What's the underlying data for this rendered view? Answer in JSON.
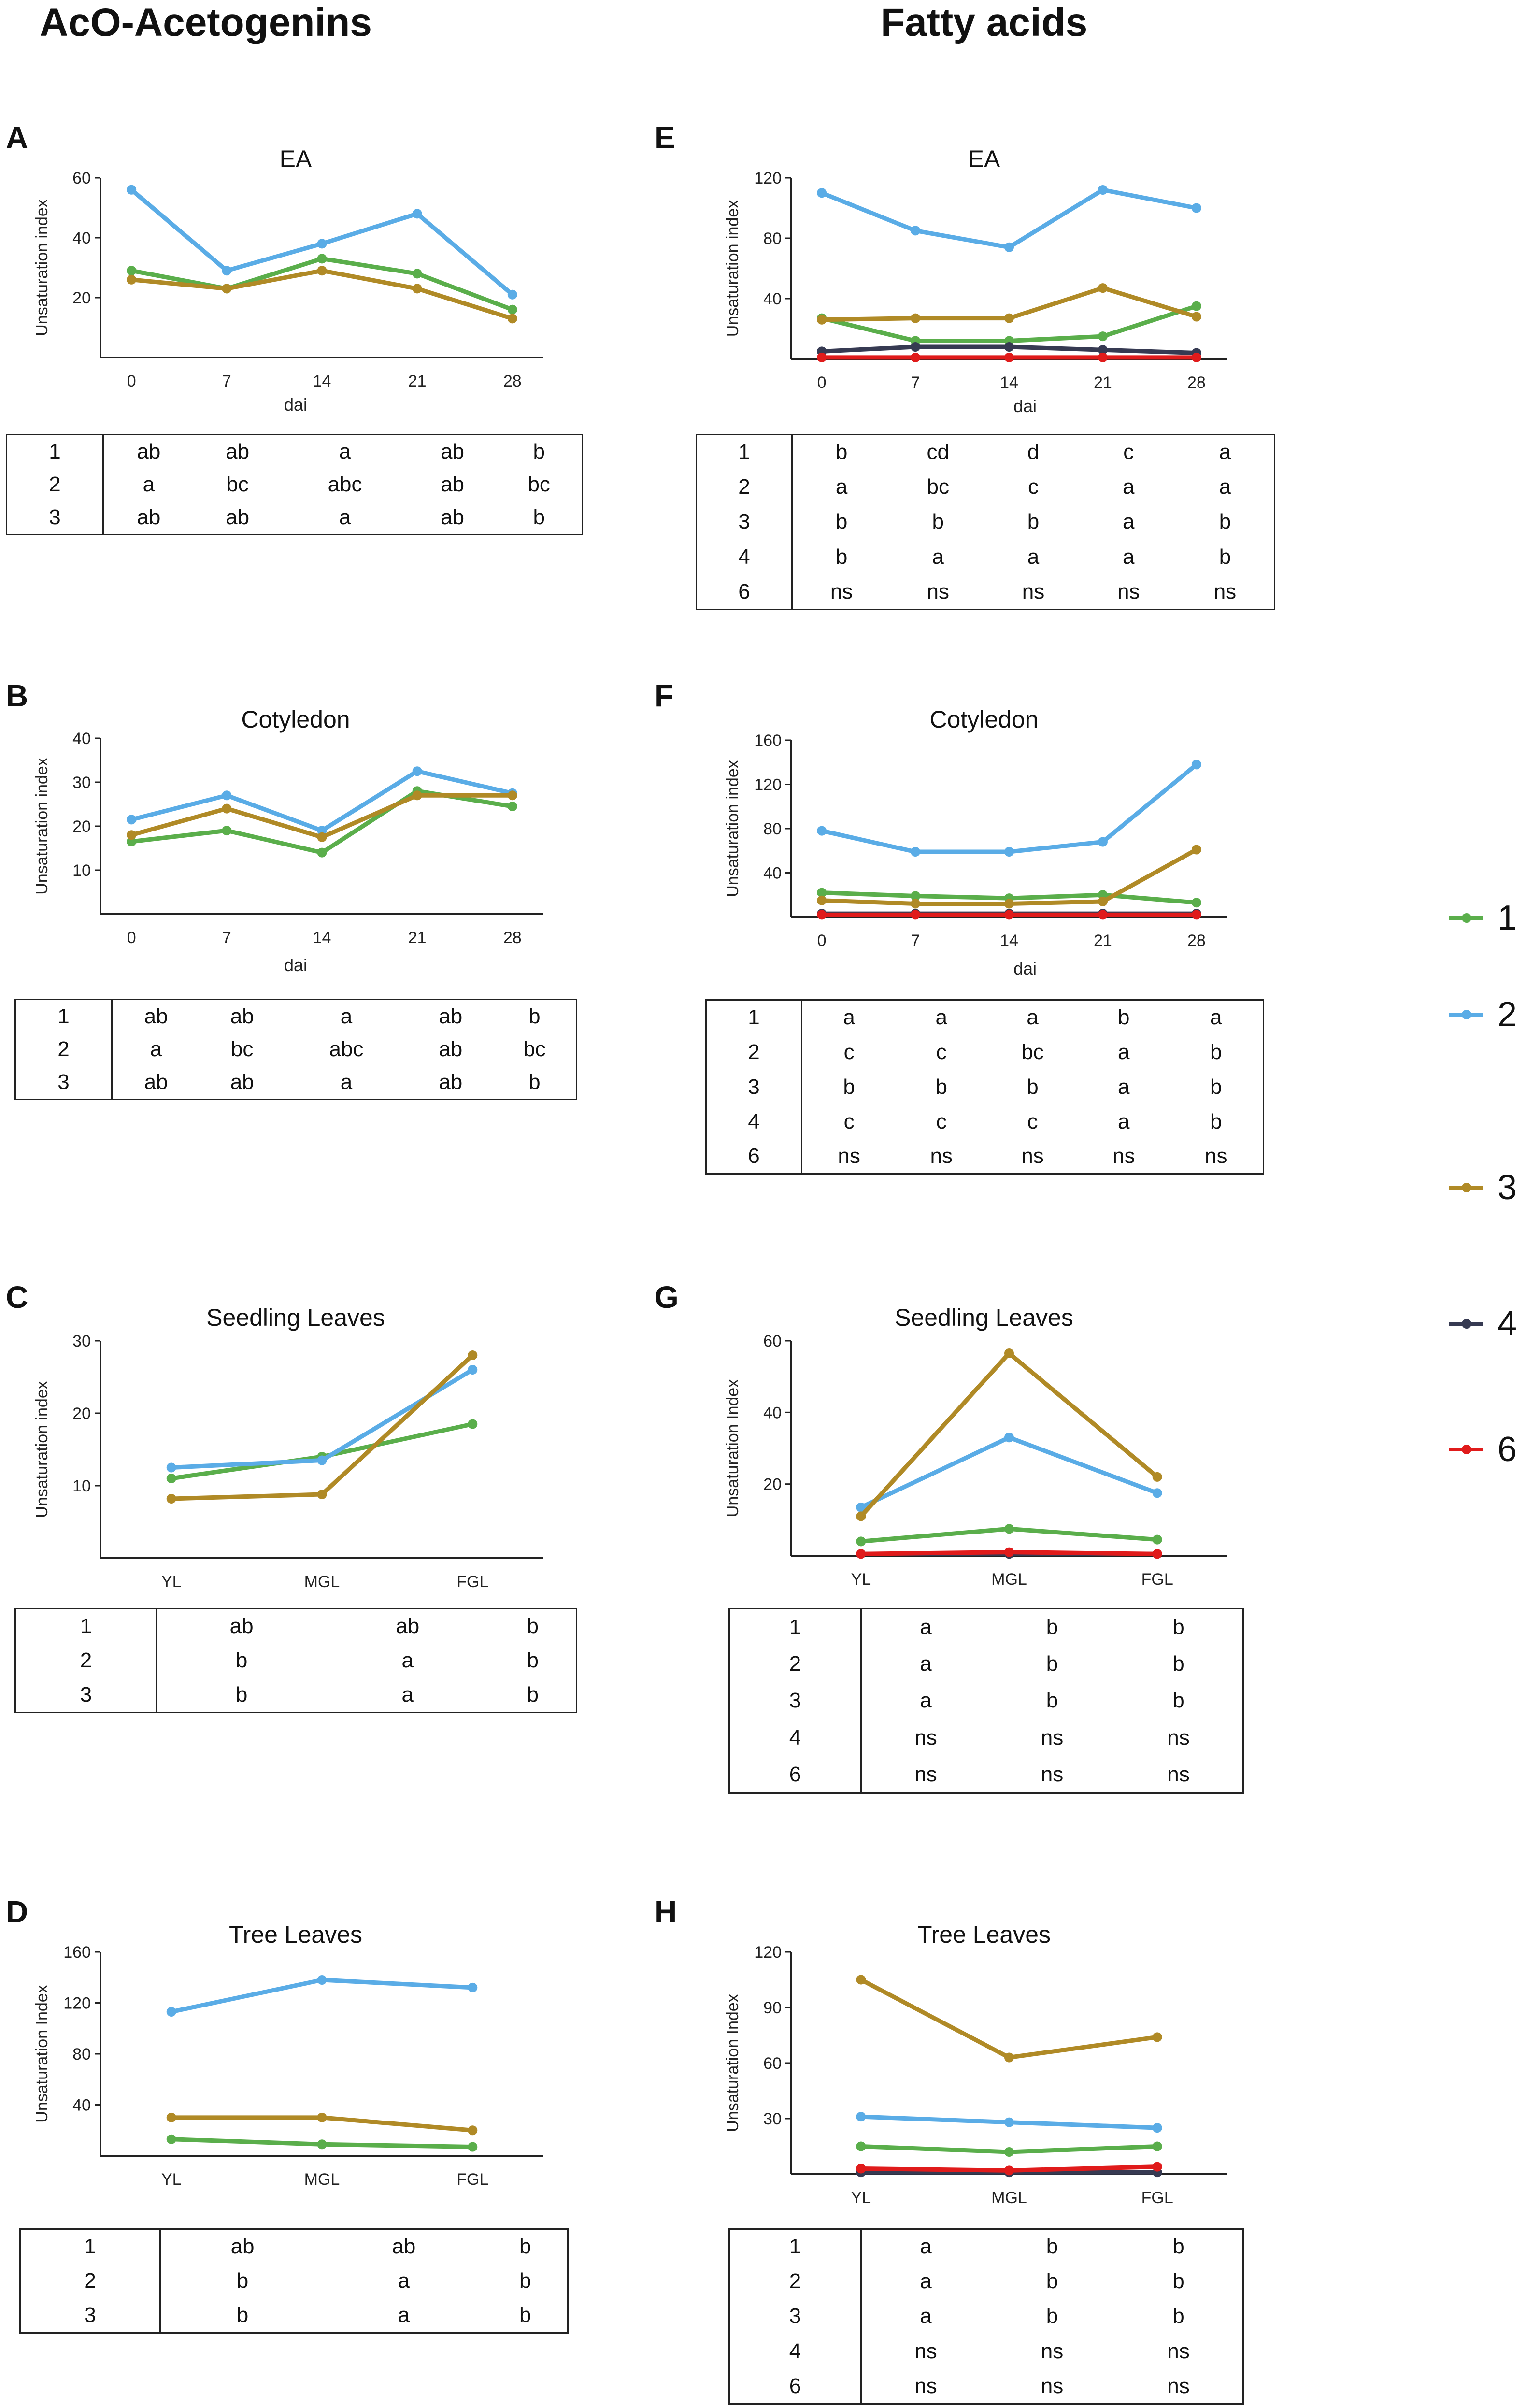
{
  "headings": {
    "left": "AcO-Acetogenins",
    "right": "Fatty acids"
  },
  "legend": [
    {
      "label": "1",
      "color": "#5aae4b"
    },
    {
      "label": "2",
      "color": "#5aace6"
    },
    {
      "label": "3",
      "color": "#b08a26"
    },
    {
      "label": "4",
      "color": "#363a52"
    },
    {
      "label": "6",
      "color": "#e01b1b"
    }
  ],
  "chart_data": [
    {
      "panel": "A",
      "title": "EA",
      "type": "line",
      "categories": [
        "0",
        "7",
        "14",
        "21",
        "28"
      ],
      "xlabel": "dai",
      "ylabel": "Unsaturation index",
      "ylim": [
        0,
        60
      ],
      "yticks": [
        20,
        40,
        60
      ],
      "series": [
        {
          "name": "1",
          "color": "#5aae4b",
          "values": [
            29,
            23,
            33,
            28,
            16
          ]
        },
        {
          "name": "2",
          "color": "#5aace6",
          "values": [
            56,
            29,
            38,
            48,
            21
          ]
        },
        {
          "name": "3",
          "color": "#b08a26",
          "values": [
            26,
            23,
            29,
            23,
            13
          ]
        }
      ],
      "letters": [
        {
          "group": "1",
          "cells": [
            "ab",
            "ab",
            "a",
            "ab",
            "b"
          ]
        },
        {
          "group": "2",
          "cells": [
            "a",
            "bc",
            "abc",
            "ab",
            "bc"
          ]
        },
        {
          "group": "3",
          "cells": [
            "ab",
            "ab",
            "a",
            "ab",
            "b"
          ]
        }
      ]
    },
    {
      "panel": "B",
      "title": "Cotyledon",
      "type": "line",
      "categories": [
        "0",
        "7",
        "14",
        "21",
        "28"
      ],
      "xlabel": "dai",
      "ylabel": "Unsaturation index",
      "ylim": [
        0,
        40
      ],
      "yticks": [
        10,
        20,
        30,
        40
      ],
      "series": [
        {
          "name": "1",
          "color": "#5aae4b",
          "values": [
            16.5,
            19,
            14,
            28,
            24.5
          ]
        },
        {
          "name": "2",
          "color": "#5aace6",
          "values": [
            21.5,
            27,
            19,
            32.5,
            27.5
          ]
        },
        {
          "name": "3",
          "color": "#b08a26",
          "values": [
            18,
            24,
            17.5,
            27,
            27
          ]
        }
      ],
      "letters": [
        {
          "group": "1",
          "cells": [
            "ab",
            "ab",
            "a",
            "ab",
            "b"
          ]
        },
        {
          "group": "2",
          "cells": [
            "a",
            "bc",
            "abc",
            "ab",
            "bc"
          ]
        },
        {
          "group": "3",
          "cells": [
            "ab",
            "ab",
            "a",
            "ab",
            "b"
          ]
        }
      ]
    },
    {
      "panel": "C",
      "title": "Seedling Leaves",
      "type": "line",
      "categories": [
        "YL",
        "MGL",
        "FGL"
      ],
      "xlabel": "",
      "ylabel": "Unsaturation index",
      "ylim": [
        0,
        30
      ],
      "yticks": [
        10,
        20,
        30
      ],
      "series": [
        {
          "name": "1",
          "color": "#5aae4b",
          "values": [
            11,
            14,
            18.5
          ]
        },
        {
          "name": "2",
          "color": "#5aace6",
          "values": [
            12.5,
            13.5,
            26
          ]
        },
        {
          "name": "3",
          "color": "#b08a26",
          "values": [
            8.2,
            8.8,
            28
          ]
        }
      ],
      "letters": [
        {
          "group": "1",
          "cells": [
            "ab",
            "ab",
            "b"
          ]
        },
        {
          "group": "2",
          "cells": [
            "b",
            "a",
            "b"
          ]
        },
        {
          "group": "3",
          "cells": [
            "b",
            "a",
            "b"
          ]
        }
      ]
    },
    {
      "panel": "D",
      "title": "Tree Leaves",
      "type": "line",
      "categories": [
        "YL",
        "MGL",
        "FGL"
      ],
      "xlabel": "",
      "ylabel": "Unsaturation Index",
      "ylim": [
        0,
        160
      ],
      "yticks": [
        40,
        80,
        120,
        160
      ],
      "series": [
        {
          "name": "1",
          "color": "#5aae4b",
          "values": [
            13,
            9,
            7
          ]
        },
        {
          "name": "2",
          "color": "#5aace6",
          "values": [
            113,
            138,
            132
          ]
        },
        {
          "name": "3",
          "color": "#b08a26",
          "values": [
            30,
            30,
            20
          ]
        }
      ],
      "letters": [
        {
          "group": "1",
          "cells": [
            "ab",
            "ab",
            "b"
          ]
        },
        {
          "group": "2",
          "cells": [
            "b",
            "a",
            "b"
          ]
        },
        {
          "group": "3",
          "cells": [
            "b",
            "a",
            "b"
          ]
        }
      ]
    },
    {
      "panel": "E",
      "title": "EA",
      "type": "line",
      "categories": [
        "0",
        "7",
        "14",
        "21",
        "28"
      ],
      "xlabel": "dai",
      "ylabel": "Unsaturation index",
      "ylim": [
        0,
        120
      ],
      "yticks": [
        40,
        80,
        120
      ],
      "series": [
        {
          "name": "1",
          "color": "#5aae4b",
          "values": [
            27,
            12,
            12,
            15,
            35
          ]
        },
        {
          "name": "2",
          "color": "#5aace6",
          "values": [
            110,
            85,
            74,
            112,
            100
          ]
        },
        {
          "name": "3",
          "color": "#b08a26",
          "values": [
            26,
            27,
            27,
            47,
            28
          ]
        },
        {
          "name": "4",
          "color": "#363a52",
          "values": [
            5,
            8,
            8,
            6,
            4
          ]
        },
        {
          "name": "6",
          "color": "#e01b1b",
          "values": [
            1,
            1,
            1,
            1,
            1
          ]
        }
      ],
      "letters": [
        {
          "group": "1",
          "cells": [
            "b",
            "cd",
            "d",
            "c",
            "a"
          ]
        },
        {
          "group": "2",
          "cells": [
            "a",
            "bc",
            "c",
            "a",
            "a"
          ]
        },
        {
          "group": "3",
          "cells": [
            "b",
            "b",
            "b",
            "a",
            "b"
          ]
        },
        {
          "group": "4",
          "cells": [
            "b",
            "a",
            "a",
            "a",
            "b"
          ]
        },
        {
          "group": "6",
          "cells": [
            "ns",
            "ns",
            "ns",
            "ns",
            "ns"
          ]
        }
      ]
    },
    {
      "panel": "F",
      "title": "Cotyledon",
      "type": "line",
      "categories": [
        "0",
        "7",
        "14",
        "21",
        "28"
      ],
      "xlabel": "dai",
      "ylabel": "Unsaturation index",
      "ylim": [
        0,
        160
      ],
      "yticks": [
        40,
        80,
        120,
        160
      ],
      "series": [
        {
          "name": "1",
          "color": "#5aae4b",
          "values": [
            22,
            19,
            17,
            20,
            13
          ]
        },
        {
          "name": "2",
          "color": "#5aace6",
          "values": [
            78,
            59,
            59,
            68,
            138
          ]
        },
        {
          "name": "3",
          "color": "#b08a26",
          "values": [
            15,
            12,
            12,
            14,
            61
          ]
        },
        {
          "name": "4",
          "color": "#363a52",
          "values": [
            3,
            3,
            3,
            3,
            3
          ]
        },
        {
          "name": "6",
          "color": "#e01b1b",
          "values": [
            2,
            2,
            2,
            2,
            2
          ]
        }
      ],
      "letters": [
        {
          "group": "1",
          "cells": [
            "a",
            "a",
            "a",
            "b",
            "a"
          ]
        },
        {
          "group": "2",
          "cells": [
            "c",
            "c",
            "bc",
            "a",
            "b"
          ]
        },
        {
          "group": "3",
          "cells": [
            "b",
            "b",
            "b",
            "a",
            "b"
          ]
        },
        {
          "group": "4",
          "cells": [
            "c",
            "c",
            "c",
            "a",
            "b"
          ]
        },
        {
          "group": "6",
          "cells": [
            "ns",
            "ns",
            "ns",
            "ns",
            "ns"
          ]
        }
      ]
    },
    {
      "panel": "G",
      "title": "Seedling Leaves",
      "type": "line",
      "categories": [
        "YL",
        "MGL",
        "FGL"
      ],
      "xlabel": "",
      "ylabel": "Unsaturation Index",
      "ylim": [
        0,
        60
      ],
      "yticks": [
        20,
        40,
        60
      ],
      "series": [
        {
          "name": "1",
          "color": "#5aae4b",
          "values": [
            4,
            7.5,
            4.5
          ]
        },
        {
          "name": "2",
          "color": "#5aace6",
          "values": [
            13.5,
            33,
            17.5
          ]
        },
        {
          "name": "3",
          "color": "#b08a26",
          "values": [
            11,
            56.5,
            22
          ]
        },
        {
          "name": "4",
          "color": "#363a52",
          "values": [
            0.5,
            0.5,
            0.5
          ]
        },
        {
          "name": "6",
          "color": "#e01b1b",
          "values": [
            0.5,
            1,
            0.5
          ]
        }
      ],
      "letters": [
        {
          "group": "1",
          "cells": [
            "a",
            "b",
            "b"
          ]
        },
        {
          "group": "2",
          "cells": [
            "a",
            "b",
            "b"
          ]
        },
        {
          "group": "3",
          "cells": [
            "a",
            "b",
            "b"
          ]
        },
        {
          "group": "4",
          "cells": [
            "ns",
            "ns",
            "ns"
          ]
        },
        {
          "group": "6",
          "cells": [
            "ns",
            "ns",
            "ns"
          ]
        }
      ]
    },
    {
      "panel": "H",
      "title": "Tree Leaves",
      "type": "line",
      "categories": [
        "YL",
        "MGL",
        "FGL"
      ],
      "xlabel": "",
      "ylabel": "Unsaturation Index",
      "ylim": [
        0,
        120
      ],
      "yticks": [
        30,
        60,
        90,
        120
      ],
      "series": [
        {
          "name": "1",
          "color": "#5aae4b",
          "values": [
            15,
            12,
            15
          ]
        },
        {
          "name": "2",
          "color": "#5aace6",
          "values": [
            31,
            28,
            25
          ]
        },
        {
          "name": "3",
          "color": "#b08a26",
          "values": [
            105,
            63,
            74
          ]
        },
        {
          "name": "4",
          "color": "#363a52",
          "values": [
            1,
            1,
            1
          ]
        },
        {
          "name": "6",
          "color": "#e01b1b",
          "values": [
            3,
            2,
            4
          ]
        }
      ],
      "letters": [
        {
          "group": "1",
          "cells": [
            "a",
            "b",
            "b"
          ]
        },
        {
          "group": "2",
          "cells": [
            "a",
            "b",
            "b"
          ]
        },
        {
          "group": "3",
          "cells": [
            "a",
            "b",
            "b"
          ]
        },
        {
          "group": "4",
          "cells": [
            "ns",
            "ns",
            "ns"
          ]
        },
        {
          "group": "6",
          "cells": [
            "ns",
            "ns",
            "ns"
          ]
        }
      ]
    }
  ]
}
